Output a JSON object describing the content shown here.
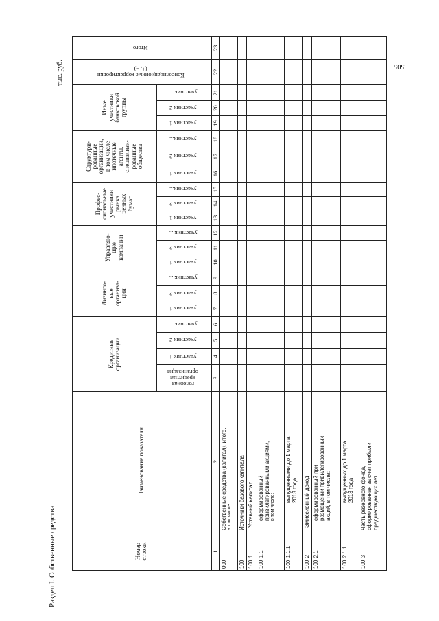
{
  "title": "Раздел I. Собственные средства",
  "unit": "тыс. руб.",
  "page_number": "505",
  "header": {
    "row_number": "Номер\nстроки",
    "indicator_name": "Наименование показателя",
    "head_credit_org": "головная\nкредитная\nорганизация",
    "groups": [
      {
        "label": "Кредитные\nорганизации",
        "participants": [
          "участник 1",
          "участник 2",
          "участник ..."
        ]
      },
      {
        "label": "Лизинго-\nвые\nорганиза-\nции",
        "participants": [
          "участник 1",
          "участник 2",
          "участник ..."
        ]
      },
      {
        "label": "Управляю-\nщие\nкомпании",
        "participants": [
          "участник 1",
          "участник 2",
          "участник ..."
        ]
      },
      {
        "label": "Профес-\nсиональные\nучастники\nрынка\nценных\nбумаг",
        "participants": [
          "участник 1",
          "участник 2",
          "участник..."
        ]
      },
      {
        "label": "Структури-\nрованные\nорганизации,\nв том числе\nипотечные\nагенты,\nспециализи-\nрованные\nобщества",
        "participants": [
          "участник 1",
          "участник 2",
          "участник..."
        ]
      },
      {
        "label": "Иные\nучастники\nбанковской\nгруппы",
        "participants": [
          "участник 1",
          "участник 2",
          "участник ..."
        ]
      }
    ],
    "consolidation": "Консолидационные корректировки\n(+, –)",
    "total": "Итого"
  },
  "column_numbers": [
    "1",
    "2",
    "3",
    "4",
    "5",
    "6",
    "7",
    "8",
    "9",
    "10",
    "11",
    "12",
    "13",
    "14",
    "15",
    "16",
    "17",
    "18",
    "19",
    "20",
    "21",
    "22",
    "23"
  ],
  "rows": [
    {
      "code": "000",
      "name": "Собственные средства (капитал), итого,",
      "sub": "в том числе:"
    },
    {
      "code": "100",
      "name": "Источники базового капитала"
    },
    {
      "code": "100.1",
      "name": "Уставный капитал"
    },
    {
      "code": "100.1.1",
      "name": "сформированный\nпривилегированными акциями,",
      "sub": "в том числе:"
    },
    {
      "code": "100.1.1.1",
      "name": "выпущенными до 1 марта\n2013 года"
    },
    {
      "code": "100.2",
      "name": "Эмиссионный доход"
    },
    {
      "code": "100.2.1",
      "name": "сформированный при\nразмещении привилегированных\nакций, в том числе:"
    },
    {
      "code": "100.2.1.1",
      "name": "выпущенных до 1 марта\n2013 года"
    },
    {
      "code": "100.3",
      "name": "Часть резервного фонда,\nсформированная за счет прибыли\nпредшествующих лет"
    }
  ]
}
